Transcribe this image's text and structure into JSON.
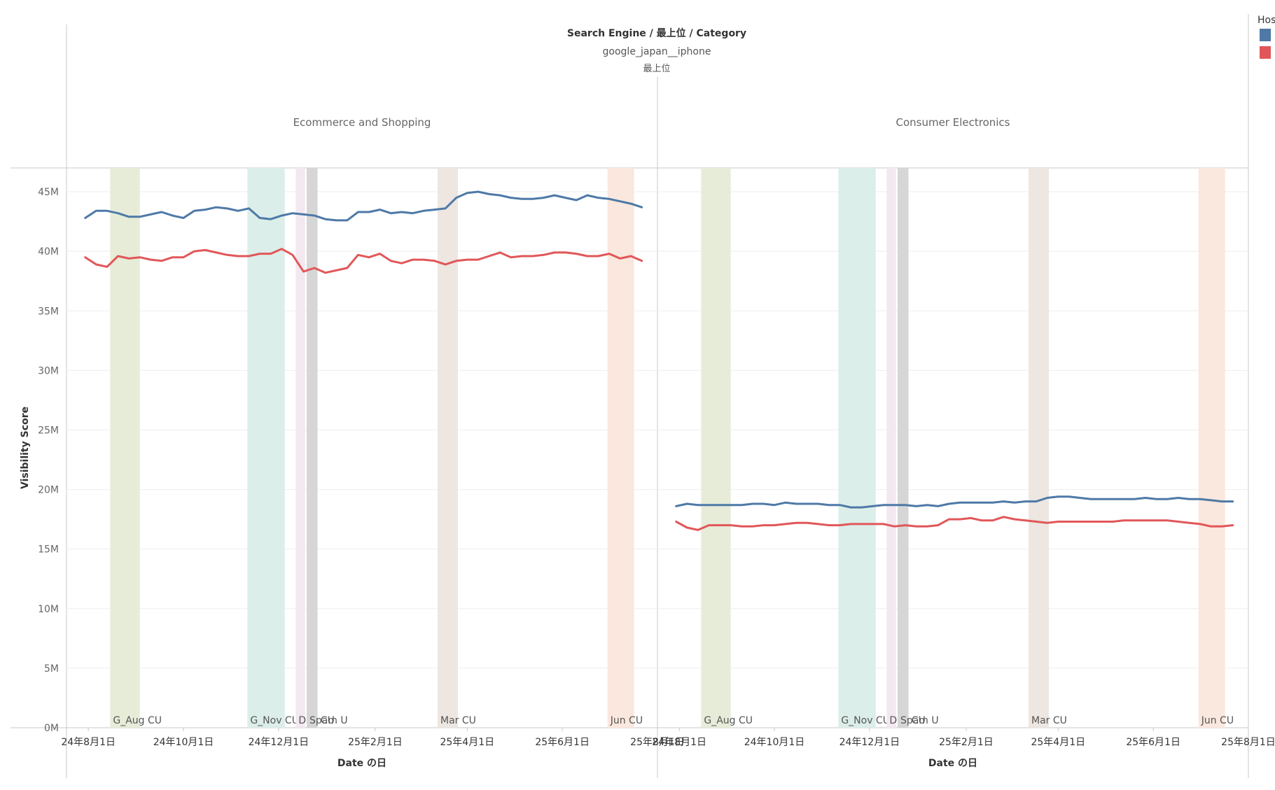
{
  "header": {
    "title": "Search Engine / 最上位 / Category",
    "subtitle": "google_japan__iphone",
    "sub2": "最上位"
  },
  "legend": {
    "title": "Hos",
    "entries": [
      {
        "color": "#4e79a7"
      },
      {
        "color": "#e15759"
      }
    ]
  },
  "chart_data": {
    "type": "line",
    "ylabel": "Visibility Score",
    "xlabel": "Date の日",
    "ylim": [
      0,
      47
    ],
    "yticks": [
      0,
      5,
      10,
      15,
      20,
      25,
      30,
      35,
      40,
      45
    ],
    "ytick_labels": [
      "0M",
      "5M",
      "10M",
      "15M",
      "20M",
      "25M",
      "30M",
      "35M",
      "40M",
      "45M"
    ],
    "xlim": [
      "2024-07-18",
      "2025-08-01"
    ],
    "xtick_dates": [
      "2024-08-01",
      "2024-10-01",
      "2024-12-01",
      "2025-02-01",
      "2025-04-01",
      "2025-06-01",
      "2025-08-01"
    ],
    "xtick_labels": [
      "24年8月1日",
      "24年10月1日",
      "24年12月1日",
      "25年2月1日",
      "25年4月1日",
      "25年6月1日",
      "25年8月1日"
    ],
    "colors": [
      "#4e79a7",
      "#e15759"
    ],
    "bands": [
      {
        "label": "G_Aug CU",
        "start": "2024-08-15",
        "end": "2024-09-03",
        "color": "#e6ecd8"
      },
      {
        "label": "G_Nov CU",
        "start": "2024-11-11",
        "end": "2024-12-05",
        "color": "#dceee9"
      },
      {
        "label": "Dec CU",
        "start": "2024-12-12",
        "end": "2024-12-18",
        "color": "#f3e8f0"
      },
      {
        "label": "Spam U",
        "start": "2024-12-19",
        "end": "2024-12-26",
        "color": "#d6d6d6"
      },
      {
        "label": "Mar CU",
        "start": "2025-03-13",
        "end": "2025-03-26",
        "color": "#ede6e1"
      },
      {
        "label": "Jun CU",
        "start": "2025-06-30",
        "end": "2025-07-17",
        "color": "#fae7dd"
      }
    ],
    "dates": [
      "2024-07-30",
      "2024-08-06",
      "2024-08-13",
      "2024-08-20",
      "2024-08-27",
      "2024-09-03",
      "2024-09-10",
      "2024-09-17",
      "2024-09-24",
      "2024-10-01",
      "2024-10-08",
      "2024-10-15",
      "2024-10-22",
      "2024-10-29",
      "2024-11-05",
      "2024-11-12",
      "2024-11-19",
      "2024-11-26",
      "2024-12-03",
      "2024-12-10",
      "2024-12-17",
      "2024-12-24",
      "2024-12-31",
      "2025-01-07",
      "2025-01-14",
      "2025-01-21",
      "2025-01-28",
      "2025-02-04",
      "2025-02-11",
      "2025-02-18",
      "2025-02-25",
      "2025-03-04",
      "2025-03-11",
      "2025-03-18",
      "2025-03-25",
      "2025-04-01",
      "2025-04-08",
      "2025-04-15",
      "2025-04-22",
      "2025-04-29",
      "2025-05-06",
      "2025-05-13",
      "2025-05-20",
      "2025-05-27",
      "2025-06-03",
      "2025-06-10",
      "2025-06-17",
      "2025-06-24",
      "2025-07-01",
      "2025-07-08",
      "2025-07-15",
      "2025-07-22"
    ],
    "panels": [
      {
        "title": "Ecommerce and Shopping",
        "series": [
          {
            "values": [
              42.8,
              43.4,
              43.4,
              43.2,
              42.9,
              42.9,
              43.1,
              43.3,
              43.0,
              42.8,
              43.4,
              43.5,
              43.7,
              43.6,
              43.4,
              43.6,
              42.8,
              42.7,
              43.0,
              43.2,
              43.1,
              43.0,
              42.7,
              42.6,
              42.6,
              43.3,
              43.3,
              43.5,
              43.2,
              43.3,
              43.2,
              43.4,
              43.5,
              43.6,
              44.5,
              44.9,
              45.0,
              44.8,
              44.7,
              44.5,
              44.4,
              44.4,
              44.5,
              44.7,
              44.5,
              44.3,
              44.7,
              44.5,
              44.4,
              44.2,
              44.0,
              43.7
            ]
          },
          {
            "values": [
              39.5,
              38.9,
              38.7,
              39.6,
              39.4,
              39.5,
              39.3,
              39.2,
              39.5,
              39.5,
              40.0,
              40.1,
              39.9,
              39.7,
              39.6,
              39.6,
              39.8,
              39.8,
              40.2,
              39.7,
              38.3,
              38.6,
              38.2,
              38.4,
              38.6,
              39.7,
              39.5,
              39.8,
              39.2,
              39.0,
              39.3,
              39.3,
              39.2,
              38.9,
              39.2,
              39.3,
              39.3,
              39.6,
              39.9,
              39.5,
              39.6,
              39.6,
              39.7,
              39.9,
              39.9,
              39.8,
              39.6,
              39.6,
              39.8,
              39.4,
              39.6,
              39.2
            ]
          }
        ]
      },
      {
        "title": "Consumer Electronics",
        "series": [
          {
            "values": [
              18.6,
              18.8,
              18.7,
              18.7,
              18.7,
              18.7,
              18.7,
              18.8,
              18.8,
              18.7,
              18.9,
              18.8,
              18.8,
              18.8,
              18.7,
              18.7,
              18.5,
              18.5,
              18.6,
              18.7,
              18.7,
              18.7,
              18.6,
              18.7,
              18.6,
              18.8,
              18.9,
              18.9,
              18.9,
              18.9,
              19.0,
              18.9,
              19.0,
              19.0,
              19.3,
              19.4,
              19.4,
              19.3,
              19.2,
              19.2,
              19.2,
              19.2,
              19.2,
              19.3,
              19.2,
              19.2,
              19.3,
              19.2,
              19.2,
              19.1,
              19.0,
              19.0
            ]
          },
          {
            "values": [
              17.3,
              16.8,
              16.6,
              17.0,
              17.0,
              17.0,
              16.9,
              16.9,
              17.0,
              17.0,
              17.1,
              17.2,
              17.2,
              17.1,
              17.0,
              17.0,
              17.1,
              17.1,
              17.1,
              17.1,
              16.9,
              17.0,
              16.9,
              16.9,
              17.0,
              17.5,
              17.5,
              17.6,
              17.4,
              17.4,
              17.7,
              17.5,
              17.4,
              17.3,
              17.2,
              17.3,
              17.3,
              17.3,
              17.3,
              17.3,
              17.3,
              17.4,
              17.4,
              17.4,
              17.4,
              17.4,
              17.3,
              17.2,
              17.1,
              16.9,
              16.9,
              17.0
            ]
          }
        ]
      }
    ]
  }
}
